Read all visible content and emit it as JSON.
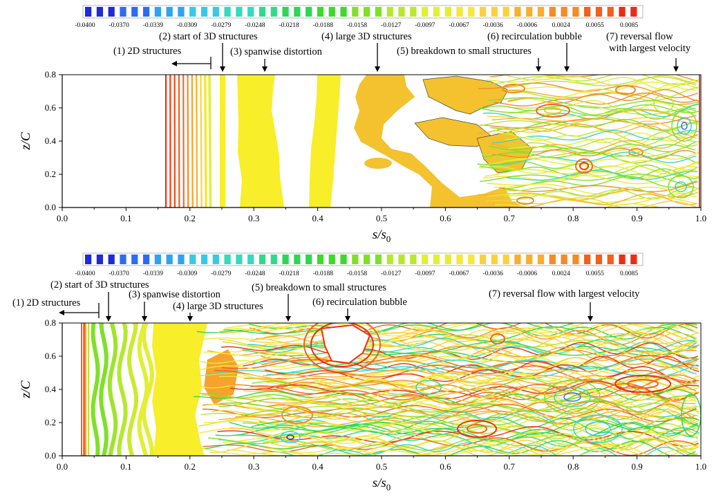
{
  "colors": {
    "scale": [
      "#1f2bd9",
      "#2d6cf0",
      "#2fa3f0",
      "#39c9e6",
      "#37d9bf",
      "#33d98a",
      "#2fd655",
      "#3ed92a",
      "#7fe02b",
      "#b6e830",
      "#e2ef33",
      "#f6e739",
      "#fbd13a",
      "#f8ae2e",
      "#f58b25",
      "#f1601d",
      "#ec2d13"
    ],
    "line": "#000000"
  },
  "chart_data": [
    {
      "type": "contour",
      "colorbar": {
        "tick_labels": [
          "-0.0400",
          "-0.0370",
          "-0.0339",
          "-0.0309",
          "-0.0279",
          "-0.0248",
          "-0.0218",
          "-0.0188",
          "-0.0158",
          "-0.0127",
          "-0.0097",
          "-0.0067",
          "-0.0036",
          "-0.0006",
          "0.0024",
          "0.0055",
          "0.0085"
        ],
        "min": -0.04,
        "max": 0.0085
      },
      "xlabel": "s/s",
      "xlabel_sub": "0",
      "ylabel": "z/C",
      "xlim": [
        0.0,
        1.0
      ],
      "ylim": [
        0.0,
        0.8
      ],
      "xticks": [
        "0.0",
        "0.1",
        "0.2",
        "0.3",
        "0.4",
        "0.5",
        "0.6",
        "0.7",
        "0.8",
        "0.9",
        "1.0"
      ],
      "yticks": [
        "0.0",
        "0.2",
        "0.4",
        "0.6",
        "0.8"
      ],
      "annotations": [
        {
          "text": "(1) 2D structures",
          "s": 0.235,
          "arrow": "left"
        },
        {
          "text": "(2) start of 3D structures",
          "s": 0.253,
          "arrow": "down"
        },
        {
          "text": "(3) spanwise distortion",
          "s": 0.32,
          "arrow": "down"
        },
        {
          "text": "(4) large 3D structures",
          "s": 0.495,
          "arrow": "down"
        },
        {
          "text": "(5) breakdown to small structures",
          "s": 0.75,
          "arrow": "down"
        },
        {
          "text": "(6) recirculation bubble",
          "s": 0.795,
          "arrow": "down"
        },
        {
          "text": "(7) reversal flow",
          "text2": "with largest velocity",
          "s": 0.965,
          "arrow": "down"
        }
      ]
    },
    {
      "type": "contour",
      "colorbar": {
        "tick_labels": [
          "-0.0400",
          "-0.0370",
          "-0.0339",
          "-0.0309",
          "-0.0279",
          "-0.0248",
          "-0.0218",
          "-0.0188",
          "-0.0158",
          "-0.0127",
          "-0.0097",
          "-0.0067",
          "-0.0036",
          "-0.0006",
          "0.0024",
          "0.0055",
          "0.0085"
        ],
        "min": -0.04,
        "max": 0.0085
      },
      "xlabel": "s/s",
      "xlabel_sub": "0",
      "ylabel": "z/C",
      "xlim": [
        0.0,
        1.0
      ],
      "ylim": [
        0.0,
        0.8
      ],
      "xticks": [
        "0.0",
        "0.1",
        "0.2",
        "0.3",
        "0.4",
        "0.5",
        "0.6",
        "0.7",
        "0.8",
        "0.9",
        "1.0"
      ],
      "yticks": [
        "0.0",
        "0.2",
        "0.4",
        "0.6",
        "0.8"
      ],
      "annotations": [
        {
          "text": "(1) 2D structures",
          "s": 0.06,
          "arrow": "left"
        },
        {
          "text": "(2) start of 3D structures",
          "s": 0.073,
          "arrow": "down"
        },
        {
          "text": "(3) spanwise distortion",
          "s": 0.13,
          "arrow": "down"
        },
        {
          "text": "(4) large 3D structures",
          "s": 0.205,
          "arrow": "down"
        },
        {
          "text": "(5) breakdown to small structures",
          "s": 0.355,
          "arrow": "down"
        },
        {
          "text": "(6) recirculation bubble",
          "s": 0.447,
          "arrow": "down"
        },
        {
          "text": "(7) reversal flow with largest velocity",
          "s": 0.83,
          "arrow": "down"
        }
      ]
    }
  ]
}
